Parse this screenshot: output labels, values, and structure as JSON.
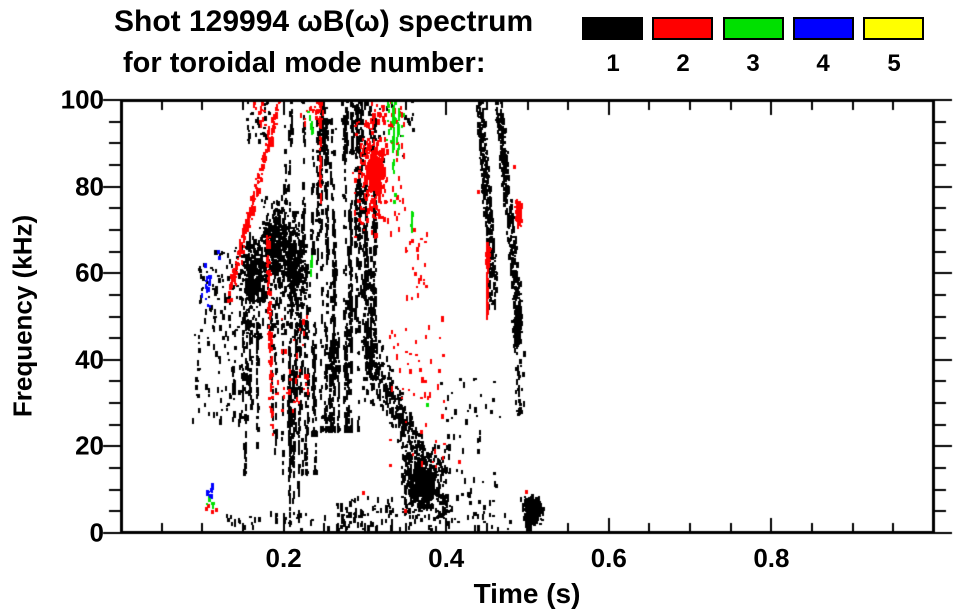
{
  "title": {
    "line1": "Shot 129994 ωB(ω) spectrum",
    "line2": "for toroidal mode number:"
  },
  "legend": {
    "items": [
      {
        "label": "1",
        "color": "#000000"
      },
      {
        "label": "2",
        "color": "#ff0000"
      },
      {
        "label": "3",
        "color": "#00e000"
      },
      {
        "label": "4",
        "color": "#0000ff"
      },
      {
        "label": "5",
        "color": "#ffff00"
      }
    ]
  },
  "chart_data": {
    "type": "scatter",
    "title": "Shot 129994 ωB(ω) spectrum for toroidal mode number: 1 2 3 4 5",
    "xlabel": "Time (s)",
    "ylabel": "Frequency (kHz)",
    "xlim": [
      0.0,
      1.0
    ],
    "ylim": [
      0,
      100
    ],
    "grid": false,
    "legend_position": "top-right",
    "x_ticks": [
      {
        "value": 0.2,
        "label": "0.2"
      },
      {
        "value": 0.4,
        "label": "0.4"
      },
      {
        "value": 0.6,
        "label": "0.6"
      },
      {
        "value": 0.8,
        "label": "0.8"
      }
    ],
    "x_minor_step": 0.05,
    "y_ticks": [
      {
        "value": 0,
        "label": "0"
      },
      {
        "value": 20,
        "label": "20"
      },
      {
        "value": 40,
        "label": "40"
      },
      {
        "value": 60,
        "label": "60"
      },
      {
        "value": 80,
        "label": "80"
      },
      {
        "value": 100,
        "label": "100"
      }
    ],
    "y_minor_step": 5,
    "modes": [
      {
        "n": 1,
        "color": "#000000"
      },
      {
        "n": 2,
        "color": "#ff0000"
      },
      {
        "n": 3,
        "color": "#00e000"
      },
      {
        "n": 4,
        "color": "#0000ff"
      },
      {
        "n": 5,
        "color": "#ffff00"
      }
    ],
    "features": [
      {
        "m": 1,
        "s": "box",
        "t": [
          0.088,
          0.162
        ],
        "f": [
          25,
          47
        ],
        "n": 70
      },
      {
        "m": 1,
        "s": "box",
        "t": [
          0.096,
          0.162
        ],
        "f": [
          45,
          66
        ],
        "n": 110
      },
      {
        "m": 1,
        "s": "blob",
        "c": [
          0.163,
          60
        ],
        "r": [
          0.016,
          8
        ],
        "n": 260
      },
      {
        "m": 1,
        "s": "blob",
        "c": [
          0.19,
          67
        ],
        "r": [
          0.015,
          9
        ],
        "n": 320
      },
      {
        "m": 1,
        "s": "blob",
        "c": [
          0.214,
          62
        ],
        "r": [
          0.014,
          10
        ],
        "n": 280
      },
      {
        "m": 1,
        "s": "box",
        "t": [
          0.148,
          0.233
        ],
        "f": [
          45,
          63
        ],
        "n": 240
      },
      {
        "m": 1,
        "s": "vstreaks",
        "t": [
          0.125,
          0.243
        ],
        "f": [
          14,
          48
        ],
        "cols": 26,
        "n": 420
      },
      {
        "m": 1,
        "s": "vline",
        "t": 0.2075,
        "f": [
          2,
          44
        ],
        "n": 50
      },
      {
        "m": 1,
        "s": "vline",
        "t": 0.2125,
        "f": [
          4,
          40
        ],
        "n": 40
      },
      {
        "m": 1,
        "s": "vline",
        "t": 0.219,
        "f": [
          3,
          28
        ],
        "n": 30
      },
      {
        "m": 1,
        "s": "vstreaks",
        "t": [
          0.2,
          0.237
        ],
        "f": [
          65,
          100
        ],
        "cols": 8,
        "n": 120
      },
      {
        "m": 1,
        "s": "box",
        "t": [
          0.155,
          0.185
        ],
        "f": [
          90,
          100
        ],
        "n": 32
      },
      {
        "m": 1,
        "s": "vstreaks",
        "t": [
          0.24,
          0.316
        ],
        "f": [
          24,
          95
        ],
        "cols": 30,
        "n": 1150
      },
      {
        "m": 1,
        "s": "vstreaks",
        "t": [
          0.242,
          0.3
        ],
        "f": [
          88,
          100
        ],
        "cols": 8,
        "n": 130
      },
      {
        "m": 1,
        "s": "box",
        "t": [
          0.25,
          0.36
        ],
        "f": [
          86,
          100
        ],
        "n": 55
      },
      {
        "m": 1,
        "s": "diag",
        "p0": [
          0.298,
          46
        ],
        "p1": [
          0.383,
          10
        ],
        "w": [
          0.006,
          5
        ],
        "n": 380
      },
      {
        "m": 1,
        "s": "blob",
        "c": [
          0.372,
          11
        ],
        "r": [
          0.018,
          5
        ],
        "n": 330
      },
      {
        "m": 1,
        "s": "box",
        "t": [
          0.345,
          0.405
        ],
        "f": [
          3,
          20
        ],
        "n": 200
      },
      {
        "m": 1,
        "s": "box",
        "t": [
          0.39,
          0.47
        ],
        "f": [
          3,
          36
        ],
        "n": 65
      },
      {
        "m": 1,
        "s": "diag",
        "p0": [
          0.441,
          100
        ],
        "p1": [
          0.457,
          62
        ],
        "w": [
          0.0045,
          3
        ],
        "n": 270
      },
      {
        "m": 1,
        "s": "box",
        "t": [
          0.452,
          0.463
        ],
        "f": [
          52,
          62
        ],
        "n": 40
      },
      {
        "m": 1,
        "s": "diag",
        "p0": [
          0.4645,
          100
        ],
        "p1": [
          0.4905,
          48
        ],
        "w": [
          0.0045,
          3
        ],
        "n": 300
      },
      {
        "m": 1,
        "s": "blob",
        "c": [
          0.4875,
          47
        ],
        "r": [
          0.005,
          3.5
        ],
        "n": 130
      },
      {
        "m": 1,
        "s": "box",
        "t": [
          0.486,
          0.497
        ],
        "f": [
          26,
          42
        ],
        "n": 30
      },
      {
        "m": 1,
        "s": "blob",
        "c": [
          0.506,
          5.2
        ],
        "r": [
          0.011,
          3
        ],
        "n": 280
      },
      {
        "m": 1,
        "s": "box",
        "t": [
          0.13,
          0.48
        ],
        "f": [
          0.5,
          4.5
        ],
        "n": 85
      },
      {
        "m": 1,
        "s": "box",
        "t": [
          0.265,
          0.335
        ],
        "f": [
          0,
          8
        ],
        "n": 60
      },
      {
        "m": 2,
        "s": "diag",
        "p0": [
          0.133,
          55
        ],
        "p1": [
          0.196,
          100
        ],
        "w": [
          0.0025,
          2.2
        ],
        "n": 180
      },
      {
        "m": 2,
        "s": "diag",
        "p0": [
          0.181,
          68
        ],
        "p1": [
          0.1855,
          24
        ],
        "w": [
          0.002,
          2
        ],
        "n": 90
      },
      {
        "m": 2,
        "s": "box",
        "t": [
          0.19,
          0.23
        ],
        "f": [
          28,
          50
        ],
        "n": 32
      },
      {
        "m": 2,
        "s": "box",
        "t": [
          0.213,
          0.25
        ],
        "f": [
          94,
          100
        ],
        "n": 22
      },
      {
        "m": 2,
        "s": "vline",
        "t": 0.2455,
        "f": [
          75,
          100
        ],
        "n": 42
      },
      {
        "m": 2,
        "s": "blob",
        "c": [
          0.312,
          83
        ],
        "r": [
          0.013,
          6.5
        ],
        "n": 310
      },
      {
        "m": 2,
        "s": "box",
        "t": [
          0.285,
          0.35
        ],
        "f": [
          68,
          95
        ],
        "n": 85
      },
      {
        "m": 2,
        "s": "box",
        "t": [
          0.3,
          0.347
        ],
        "f": [
          94,
          100
        ],
        "n": 40
      },
      {
        "m": 2,
        "s": "box",
        "t": [
          0.163,
          0.178
        ],
        "f": [
          94,
          100
        ],
        "n": 13
      },
      {
        "m": 2,
        "s": "box",
        "t": [
          0.33,
          0.4
        ],
        "f": [
          15,
          50
        ],
        "n": 50
      },
      {
        "m": 2,
        "s": "box",
        "t": [
          0.35,
          0.378
        ],
        "f": [
          54,
          70
        ],
        "n": 24
      },
      {
        "m": 2,
        "s": "vline",
        "t": 0.4505,
        "f": [
          50,
          67
        ],
        "n": 48
      },
      {
        "m": 2,
        "s": "blob",
        "c": [
          0.4515,
          64
        ],
        "r": [
          0.0025,
          2
        ],
        "n": 36
      },
      {
        "m": 2,
        "s": "blob",
        "c": [
          0.4895,
          73.5
        ],
        "r": [
          0.0035,
          2.8
        ],
        "n": 85
      },
      {
        "m": 2,
        "s": "points",
        "pts": [
          [
            0.44,
            78.7
          ],
          [
            0.484,
            84.5
          ],
          [
            0.416,
            16.5
          ],
          [
            0.298,
            9.2
          ],
          [
            0.35,
            5
          ],
          [
            0.499,
            9.5
          ],
          [
            0.105,
            5.5
          ],
          [
            0.112,
            4.8
          ],
          [
            0.118,
            5.2
          ],
          [
            0.108,
            6.2
          ],
          [
            0.17,
            97
          ],
          [
            0.174,
            99
          ]
        ]
      },
      {
        "m": 3,
        "s": "vline",
        "t": 0.3355,
        "f": [
          83,
          99
        ],
        "n": 28
      },
      {
        "m": 3,
        "s": "vline",
        "t": 0.3415,
        "f": [
          86,
          98
        ],
        "n": 20
      },
      {
        "m": 3,
        "s": "box",
        "t": [
          0.325,
          0.348
        ],
        "f": [
          90,
          100
        ],
        "n": 22
      },
      {
        "m": 3,
        "s": "box",
        "t": [
          0.23,
          0.238
        ],
        "f": [
          92,
          100
        ],
        "n": 10
      },
      {
        "m": 3,
        "s": "vline",
        "t": 0.2345,
        "f": [
          60,
          65
        ],
        "n": 6
      },
      {
        "m": 3,
        "s": "vline",
        "t": 0.358,
        "f": [
          68,
          74
        ],
        "n": 8
      },
      {
        "m": 3,
        "s": "points",
        "pts": [
          [
            0.377,
            29.5
          ],
          [
            0.336,
            76.5
          ],
          [
            0.338,
            78
          ]
        ]
      },
      {
        "m": 3,
        "s": "box",
        "t": [
          0.104,
          0.116
        ],
        "f": [
          6,
          8.5
        ],
        "n": 8
      },
      {
        "m": 4,
        "s": "box",
        "t": [
          0.1,
          0.112
        ],
        "f": [
          52,
          62
        ],
        "n": 16
      },
      {
        "m": 4,
        "s": "box",
        "t": [
          0.106,
          0.114
        ],
        "f": [
          8,
          11.5
        ],
        "n": 9
      },
      {
        "m": 4,
        "s": "points",
        "pts": [
          [
            0.12,
            65
          ],
          [
            0.121,
            63.5
          ]
        ]
      }
    ]
  }
}
